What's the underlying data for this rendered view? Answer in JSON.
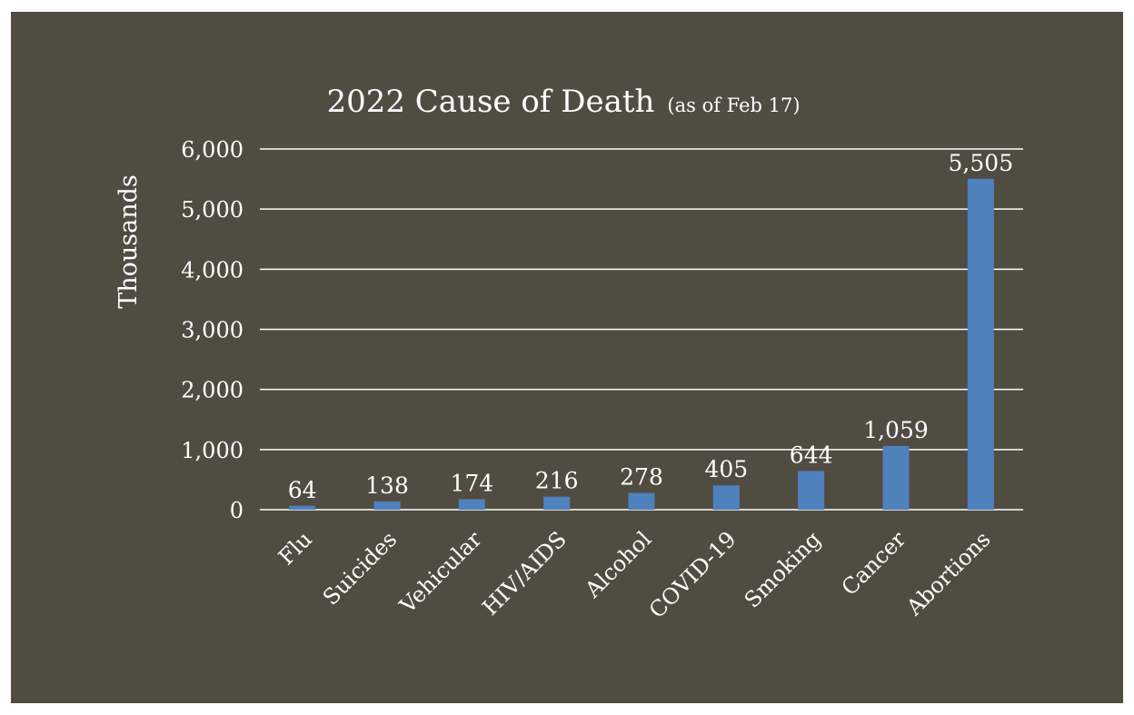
{
  "chart_data": {
    "type": "bar",
    "title": "2022 Cause of Death",
    "subtitle": "(as of Feb 17)",
    "ylabel": "Thousands",
    "xlabel": "",
    "categories": [
      "Flu",
      "Suicides",
      "Vehicular",
      "HIV/AIDS",
      "Alcohol",
      "COVID-19",
      "Smoking",
      "Cancer",
      "Abortions"
    ],
    "values": [
      64,
      138,
      174,
      216,
      278,
      405,
      644,
      1059,
      5505
    ],
    "value_labels": [
      "64",
      "138",
      "174",
      "216",
      "278",
      "405",
      "644",
      "1,059",
      "5,505"
    ],
    "yticks": [
      0,
      1000,
      2000,
      3000,
      4000,
      5000,
      6000
    ],
    "ytick_labels": [
      "0",
      "1,000",
      "2,000",
      "3,000",
      "4,000",
      "5,000",
      "6,000"
    ],
    "ylim": [
      0,
      6000
    ],
    "grid": true,
    "legend": "none",
    "colors": {
      "background": "#514c42",
      "bar": "#4f81bd",
      "text": "#ffffff",
      "grid": "#ffffff"
    }
  }
}
